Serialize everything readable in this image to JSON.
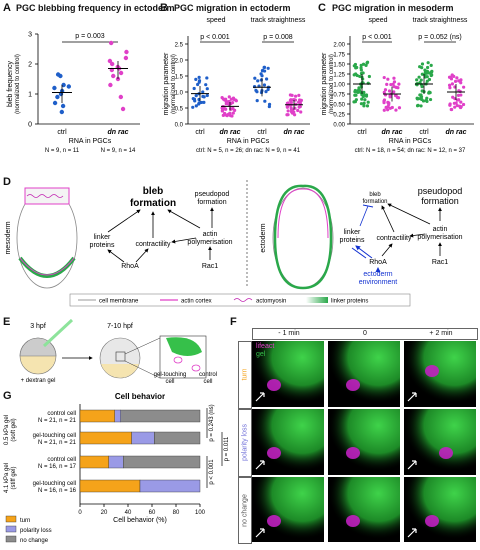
{
  "panels": {
    "A": {
      "label": "A",
      "title": "PGC blebbing frequency in ectoderm"
    },
    "B": {
      "label": "B",
      "title": "PGC migration in ectoderm"
    },
    "C": {
      "label": "C",
      "title": "PGC migration in mesoderm"
    },
    "D": {
      "label": "D"
    },
    "E": {
      "label": "E"
    },
    "F": {
      "label": "F"
    },
    "G": {
      "label": "G",
      "title": "Cell behavior"
    }
  },
  "panelA": {
    "ylabel": "bleb frequency",
    "ylabel_sub": "(normalized to control)",
    "pvalue": "p = 0.003",
    "xlabel": "RNA in PGCs",
    "groups": [
      "ctrl",
      "dn rac"
    ],
    "counts": [
      "N = 9, n = 11",
      "N = 9, n = 14"
    ],
    "yticks": [
      "0",
      "1",
      "2",
      "3"
    ]
  },
  "panelB": {
    "ylabel": "migration parameter",
    "ylabel_sub": "(normalized to control)",
    "sub1": "speed",
    "sub2": "track straightness",
    "p1": "p < 0.001",
    "p2": "p = 0.008",
    "groups": [
      "ctrl",
      "dn rac",
      "ctrl",
      "dn rac"
    ],
    "xlabel": "RNA in PGCs",
    "counts": "ctrl: N = 5, n = 26; dn rac: N = 9, n = 41",
    "yticks": [
      "0.0",
      "0.5",
      "1.0",
      "1.5",
      "2.0",
      "2.5"
    ]
  },
  "panelC": {
    "ylabel": "migration parameter",
    "ylabel_sub": "(normalized to control)",
    "sub1": "speed",
    "sub2": "track straightness",
    "p1": "p < 0.001",
    "p2": "p = 0.052 (ns)",
    "groups": [
      "ctrl",
      "dn rac",
      "ctrl",
      "dn rac"
    ],
    "xlabel": "RNA in PGCs",
    "counts": "ctrl: N = 18, n = 54; dn rac: N = 12, n = 37",
    "yticks": [
      "0.00",
      "0.25",
      "0.50",
      "0.75",
      "1.00",
      "1.25",
      "1.50",
      "1.75",
      "2.00"
    ]
  },
  "panelD": {
    "mesoderm": "mesoderm",
    "ectoderm": "ectoderm",
    "bleb1": "bleb",
    "bleb2": "formation",
    "pseudo1": "pseudopod",
    "pseudo2": "formation",
    "linker1": "linker",
    "linker2": "proteins",
    "contractility": "contractility",
    "actin1": "actin",
    "actin2": "polymerisation",
    "rhoa": "RhoA",
    "rac1": "Rac1",
    "env1": "ectoderm",
    "env2": "environment",
    "legend": [
      "cell membrane",
      "actin cortex",
      "actomyosin",
      "linker proteins"
    ]
  },
  "panelE": {
    "t1": "3 hpf",
    "t2": "7-10 hpf",
    "gel": "+ dextran gel",
    "touch1": "gel-touching",
    "touch2": "cell",
    "ctrl1": "control",
    "ctrl2": "cell"
  },
  "panelF": {
    "times": [
      "- 1 min",
      "0",
      "+ 2 min"
    ],
    "rows": [
      "turn",
      "polarity loss",
      "no change"
    ],
    "lifeact": "lifeact",
    "gel": "gel"
  },
  "panelG": {
    "xlabel": "Cell behavior (%)",
    "xticks": [
      "0",
      "20",
      "40",
      "60",
      "80",
      "100"
    ],
    "rows": [
      {
        "label1": "control cell",
        "label2": "N = 21, n = 21"
      },
      {
        "label1": "gel-touching cell",
        "label2": "N = 21, n = 21"
      },
      {
        "label1": "control cell",
        "label2": "N = 16, n = 17"
      },
      {
        "label1": "gel-touching cell",
        "label2": "N = 16, n = 16"
      }
    ],
    "group1": "0.5 kPa gel",
    "group1b": "(soft gel)",
    "group2": "4.1 kPa gel",
    "group2b": "(stiff gel)",
    "p1": "p = 0.243 (ns)",
    "p2": "p < 0.001",
    "p3": "p = 0.011",
    "legend": [
      "turn",
      "polarity loss",
      "no change"
    ]
  },
  "chart_data": [
    {
      "type": "scatter",
      "title": "PGC blebbing frequency in ectoderm",
      "ylabel": "bleb frequency (normalized to control)",
      "categories": [
        "ctrl",
        "dn rac"
      ],
      "ylim": [
        0,
        3
      ],
      "series": [
        {
          "name": "ctrl",
          "values": [
            0.4,
            0.6,
            0.7,
            0.9,
            1.0,
            1.1,
            1.2,
            1.25,
            1.3,
            1.6,
            1.65
          ]
        },
        {
          "name": "dn rac",
          "values": [
            0.5,
            0.9,
            1.3,
            1.5,
            1.6,
            1.7,
            1.8,
            1.85,
            1.9,
            2.0,
            2.1,
            2.2,
            2.4,
            2.7
          ]
        }
      ],
      "medians": [
        1.05,
        1.85
      ]
    },
    {
      "type": "scatter",
      "title": "PGC migration in ectoderm",
      "categories": [
        "ctrl speed",
        "dn rac speed",
        "ctrl straightness",
        "dn rac straightness"
      ],
      "ylim": [
        0,
        2.5
      ],
      "medians": [
        0.95,
        0.55,
        1.15,
        0.6
      ]
    },
    {
      "type": "scatter",
      "title": "PGC migration in mesoderm",
      "categories": [
        "ctrl speed",
        "dn rac speed",
        "ctrl straightness",
        "dn rac straightness"
      ],
      "ylim": [
        0,
        2
      ],
      "medians": [
        1.0,
        0.75,
        1.0,
        0.8
      ]
    },
    {
      "type": "bar",
      "title": "Cell behavior",
      "xlabel": "Cell behavior (%)",
      "xlim": [
        0,
        100
      ],
      "categories": [
        "0.5 kPa control cell",
        "0.5 kPa gel-touching cell",
        "4.1 kPa control cell",
        "4.1 kPa gel-touching cell"
      ],
      "series": [
        {
          "name": "turn",
          "values": [
            29,
            43,
            24,
            50
          ]
        },
        {
          "name": "polarity loss",
          "values": [
            5,
            19,
            12,
            50
          ]
        },
        {
          "name": "no change",
          "values": [
            66,
            38,
            64,
            0
          ]
        }
      ]
    }
  ],
  "colors": {
    "ctrl": "#1f5fc9",
    "dnrac": "#e040c8",
    "green": "#2aa84a",
    "orange": "#f5a31a",
    "lav": "#9a9ae6",
    "gray": "#8c8c8c",
    "blue": "#1030d0"
  }
}
